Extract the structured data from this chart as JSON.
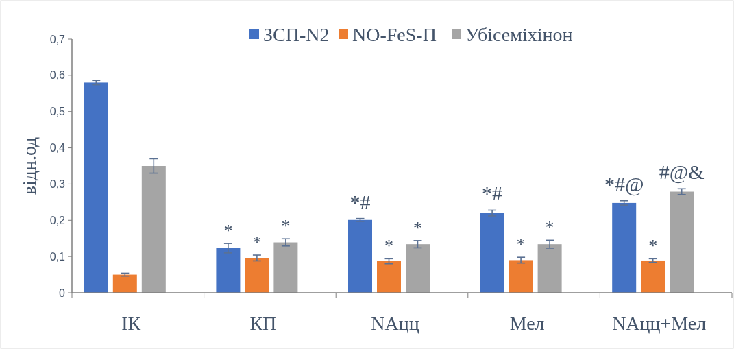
{
  "chart_data": {
    "type": "bar",
    "ylabel": "відн.од",
    "categories": [
      "ІК",
      "КП",
      "NAцц",
      "Мел",
      "NAцц+Мел"
    ],
    "series": [
      {
        "name": "ЗСП-N2",
        "color": "#4472c4",
        "values": [
          0.58,
          0.123,
          0.201,
          0.22,
          0.248
        ],
        "value_labels": [
          null,
          "*",
          "*#",
          "*#",
          "*#@"
        ],
        "errors": [
          0.006,
          0.013,
          0.004,
          0.008,
          0.006
        ]
      },
      {
        "name": "NO-FeS-П",
        "color": "#ed7d31",
        "values": [
          0.05,
          0.096,
          0.087,
          0.09,
          0.089
        ],
        "value_labels": [
          null,
          "*",
          "*",
          "*",
          "*"
        ],
        "errors": [
          0.004,
          0.008,
          0.007,
          0.008,
          0.005
        ]
      },
      {
        "name": "Убісеміхінон",
        "color": "#a5a5a5",
        "values": [
          0.35,
          0.139,
          0.134,
          0.134,
          0.279
        ],
        "value_labels": [
          null,
          "*",
          "*",
          "*",
          "#@&"
        ],
        "errors": [
          0.02,
          0.01,
          0.01,
          0.011,
          0.008
        ]
      }
    ],
    "ylim": [
      0,
      0.7
    ],
    "yticks": [
      {
        "value": 0,
        "label": "0"
      },
      {
        "value": 0.1,
        "label": "0,1"
      },
      {
        "value": 0.2,
        "label": "0,2"
      },
      {
        "value": 0.3,
        "label": "0,3"
      },
      {
        "value": 0.4,
        "label": "0,4"
      },
      {
        "value": 0.5,
        "label": "0,5"
      },
      {
        "value": 0.6,
        "label": "0,6"
      },
      {
        "value": 0.7,
        "label": "0,7"
      }
    ],
    "legend": "top",
    "grid": false
  }
}
